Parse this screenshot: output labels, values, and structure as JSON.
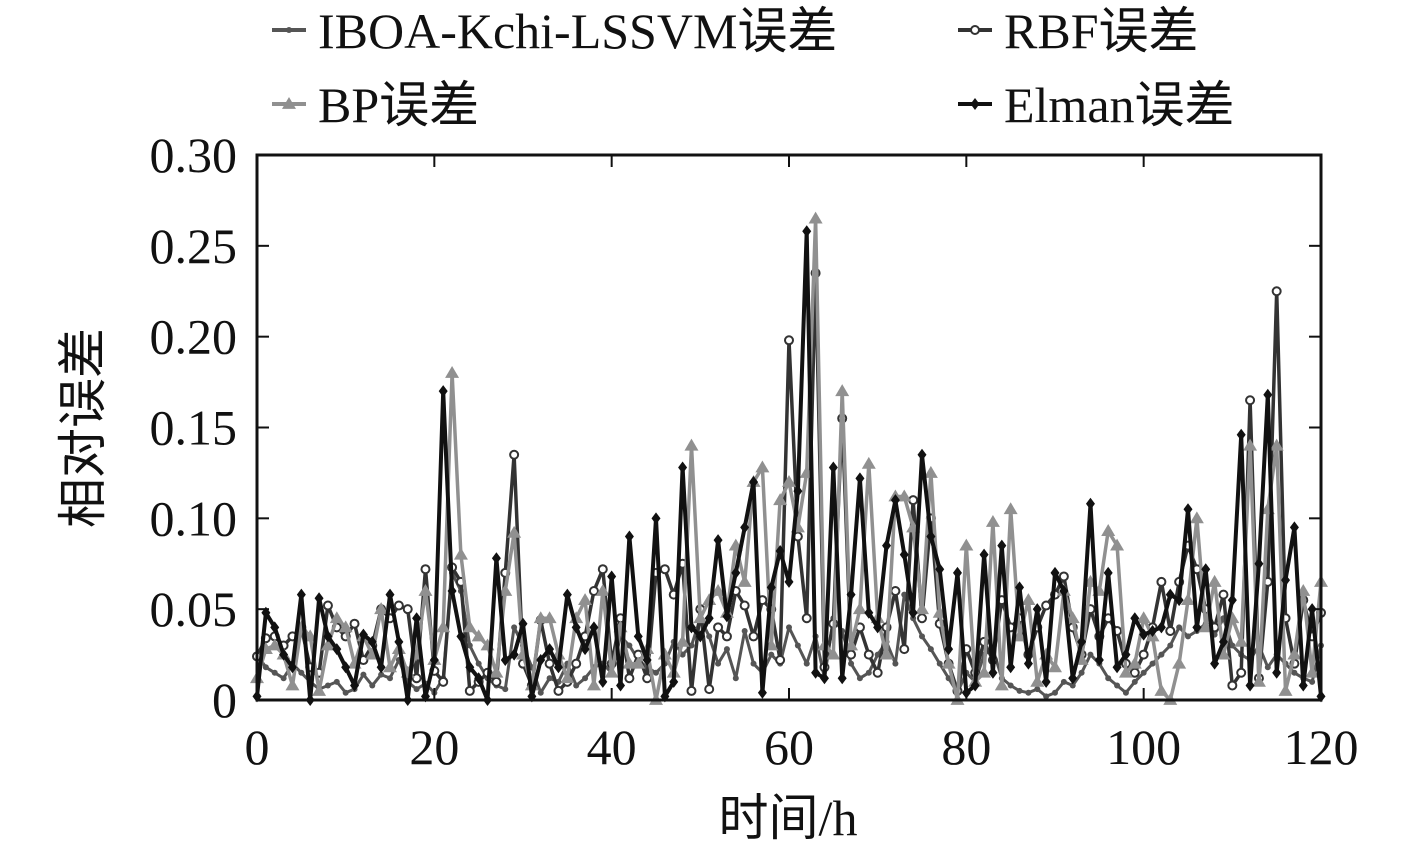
{
  "chart_data": {
    "type": "line",
    "title": "",
    "xlabel": "时间/h",
    "ylabel": "相对误差",
    "xlim": [
      0,
      120
    ],
    "ylim": [
      0,
      0.3
    ],
    "xticks": [
      0,
      20,
      40,
      60,
      80,
      100,
      120
    ],
    "xtick_labels": [
      "0",
      "20",
      "40",
      "60",
      "80",
      "100",
      "120"
    ],
    "yticks": [
      0,
      0.05,
      0.1,
      0.15,
      0.2,
      0.25,
      0.3
    ],
    "ytick_labels": [
      "0",
      "0.05",
      "0.10",
      "0.15",
      "0.20",
      "0.25",
      "0.30"
    ],
    "grid": false,
    "legend_position": "top",
    "x": [
      0,
      1,
      2,
      3,
      4,
      5,
      6,
      7,
      8,
      9,
      10,
      11,
      12,
      13,
      14,
      15,
      16,
      17,
      18,
      19,
      20,
      21,
      22,
      23,
      24,
      25,
      26,
      27,
      28,
      29,
      30,
      31,
      32,
      33,
      34,
      35,
      36,
      37,
      38,
      39,
      40,
      41,
      42,
      43,
      44,
      45,
      46,
      47,
      48,
      49,
      50,
      51,
      52,
      53,
      54,
      55,
      56,
      57,
      58,
      59,
      60,
      61,
      62,
      63,
      64,
      65,
      66,
      67,
      68,
      69,
      70,
      71,
      72,
      73,
      74,
      75,
      76,
      77,
      78,
      79,
      80,
      81,
      82,
      83,
      84,
      85,
      86,
      87,
      88,
      89,
      90,
      91,
      92,
      93,
      94,
      95,
      96,
      97,
      98,
      99,
      100,
      101,
      102,
      103,
      104,
      105,
      106,
      107,
      108,
      109,
      110,
      111,
      112,
      113,
      114,
      115,
      116,
      117,
      118,
      119,
      120
    ],
    "series": [
      {
        "name": "IBOA-Kchi-LSSVM误差",
        "marker": "dot",
        "color": "#555555",
        "values": [
          0.025,
          0.018,
          0.015,
          0.012,
          0.02,
          0.015,
          0.01,
          0.006,
          0.008,
          0.01,
          0.004,
          0.006,
          0.014,
          0.008,
          0.014,
          0.012,
          0.022,
          0.01,
          0.006,
          0.009,
          0.004,
          0.012,
          0.07,
          0.06,
          0.03,
          0.02,
          0.012,
          0.008,
          0.006,
          0.04,
          0.03,
          0.018,
          0.004,
          0.012,
          0.01,
          0.02,
          0.008,
          0.012,
          0.018,
          0.02,
          0.015,
          0.035,
          0.03,
          0.022,
          0.018,
          0.015,
          0.02,
          0.032,
          0.025,
          0.03,
          0.045,
          0.035,
          0.02,
          0.028,
          0.012,
          0.038,
          0.02,
          0.015,
          0.025,
          0.02,
          0.04,
          0.03,
          0.02,
          0.035,
          0.012,
          0.045,
          0.038,
          0.02,
          0.012,
          0.015,
          0.025,
          0.032,
          0.02,
          0.058,
          0.045,
          0.035,
          0.028,
          0.02,
          0.012,
          0.004,
          0.015,
          0.01,
          0.025,
          0.028,
          0.012,
          0.008,
          0.005,
          0.004,
          0.006,
          0.002,
          0.004,
          0.01,
          0.008,
          0.015,
          0.025,
          0.02,
          0.012,
          0.008,
          0.004,
          0.01,
          0.015,
          0.02,
          0.025,
          0.03,
          0.04,
          0.035,
          0.038,
          0.042,
          0.036,
          0.045,
          0.03,
          0.025,
          0.022,
          0.03,
          0.018,
          0.025,
          0.02,
          0.015,
          0.012,
          0.01,
          0.03
        ]
      },
      {
        "name": "RBF误差",
        "marker": "circle",
        "color": "#333333",
        "values": [
          0.024,
          0.034,
          0.035,
          0.03,
          0.035,
          0.04,
          0.018,
          0.015,
          0.052,
          0.04,
          0.035,
          0.042,
          0.022,
          0.03,
          0.05,
          0.045,
          0.052,
          0.05,
          0.012,
          0.072,
          0.016,
          0.01,
          0.073,
          0.065,
          0.005,
          0.01,
          0.015,
          0.01,
          0.07,
          0.135,
          0.02,
          0.008,
          0.044,
          0.02,
          0.005,
          0.01,
          0.02,
          0.035,
          0.06,
          0.072,
          0.02,
          0.045,
          0.012,
          0.025,
          0.012,
          0.07,
          0.072,
          0.058,
          0.075,
          0.005,
          0.05,
          0.006,
          0.04,
          0.035,
          0.06,
          0.052,
          0.035,
          0.055,
          0.05,
          0.022,
          0.198,
          0.09,
          0.045,
          0.235,
          0.018,
          0.042,
          0.155,
          0.025,
          0.04,
          0.025,
          0.015,
          0.04,
          0.06,
          0.028,
          0.11,
          0.045,
          0.1,
          0.042,
          0.02,
          0.005,
          0.028,
          0.015,
          0.032,
          0.022,
          0.055,
          0.04,
          0.045,
          0.025,
          0.04,
          0.052,
          0.058,
          0.068,
          0.04,
          0.025,
          0.05,
          0.035,
          0.045,
          0.038,
          0.02,
          0.015,
          0.025,
          0.04,
          0.065,
          0.038,
          0.065,
          0.085,
          0.072,
          0.05,
          0.04,
          0.058,
          0.008,
          0.015,
          0.165,
          0.012,
          0.065,
          0.225,
          0.045,
          0.02,
          0.055,
          0.035,
          0.048
        ]
      },
      {
        "name": "BP误差",
        "marker": "triangle",
        "color": "#909090",
        "values": [
          0.012,
          0.028,
          0.03,
          0.025,
          0.008,
          0.04,
          0.035,
          0.005,
          0.03,
          0.045,
          0.04,
          0.02,
          0.035,
          0.025,
          0.05,
          0.018,
          0.028,
          0.015,
          0.025,
          0.06,
          0.022,
          0.04,
          0.18,
          0.08,
          0.04,
          0.035,
          0.03,
          0.015,
          0.06,
          0.092,
          0.025,
          0.008,
          0.045,
          0.045,
          0.025,
          0.012,
          0.045,
          0.055,
          0.008,
          0.06,
          0.015,
          0.04,
          0.02,
          0.02,
          0.028,
          0.0,
          0.025,
          0.015,
          0.032,
          0.14,
          0.045,
          0.055,
          0.06,
          0.048,
          0.085,
          0.065,
          0.12,
          0.128,
          0.03,
          0.11,
          0.12,
          0.095,
          0.125,
          0.265,
          0.03,
          0.025,
          0.17,
          0.03,
          0.05,
          0.13,
          0.045,
          0.025,
          0.112,
          0.112,
          0.095,
          0.05,
          0.125,
          0.048,
          0.02,
          0.0,
          0.085,
          0.01,
          0.015,
          0.098,
          0.008,
          0.105,
          0.035,
          0.055,
          0.01,
          0.025,
          0.018,
          0.06,
          0.045,
          0.022,
          0.065,
          0.06,
          0.093,
          0.085,
          0.015,
          0.02,
          0.045,
          0.035,
          0.005,
          0.0,
          0.02,
          0.055,
          0.1,
          0.04,
          0.065,
          0.025,
          0.045,
          0.032,
          0.14,
          0.01,
          0.105,
          0.14,
          0.005,
          0.025,
          0.06,
          0.015,
          0.065
        ]
      },
      {
        "name": "Elman误差",
        "marker": "diamond",
        "color": "#111111",
        "values": [
          0.002,
          0.048,
          0.04,
          0.025,
          0.018,
          0.058,
          0.0,
          0.056,
          0.035,
          0.028,
          0.018,
          0.008,
          0.036,
          0.032,
          0.018,
          0.058,
          0.032,
          0.0,
          0.045,
          0.002,
          0.022,
          0.17,
          0.06,
          0.035,
          0.018,
          0.012,
          0.0,
          0.078,
          0.022,
          0.025,
          0.042,
          0.002,
          0.022,
          0.028,
          0.018,
          0.058,
          0.04,
          0.028,
          0.04,
          0.01,
          0.068,
          0.008,
          0.09,
          0.035,
          0.022,
          0.1,
          0.002,
          0.01,
          0.128,
          0.04,
          0.035,
          0.045,
          0.088,
          0.046,
          0.07,
          0.095,
          0.12,
          0.004,
          0.062,
          0.082,
          0.065,
          0.115,
          0.258,
          0.015,
          0.012,
          0.128,
          0.012,
          0.058,
          0.122,
          0.048,
          0.04,
          0.085,
          0.11,
          0.08,
          0.048,
          0.135,
          0.09,
          0.072,
          0.028,
          0.07,
          0.004,
          0.008,
          0.08,
          0.015,
          0.085,
          0.018,
          0.062,
          0.02,
          0.05,
          0.01,
          0.07,
          0.06,
          0.012,
          0.032,
          0.108,
          0.022,
          0.07,
          0.018,
          0.025,
          0.045,
          0.036,
          0.038,
          0.04,
          0.058,
          0.055,
          0.105,
          0.04,
          0.072,
          0.02,
          0.032,
          0.055,
          0.146,
          0.008,
          0.075,
          0.168,
          0.015,
          0.066,
          0.095,
          0.008,
          0.05,
          0.002
        ]
      }
    ]
  }
}
